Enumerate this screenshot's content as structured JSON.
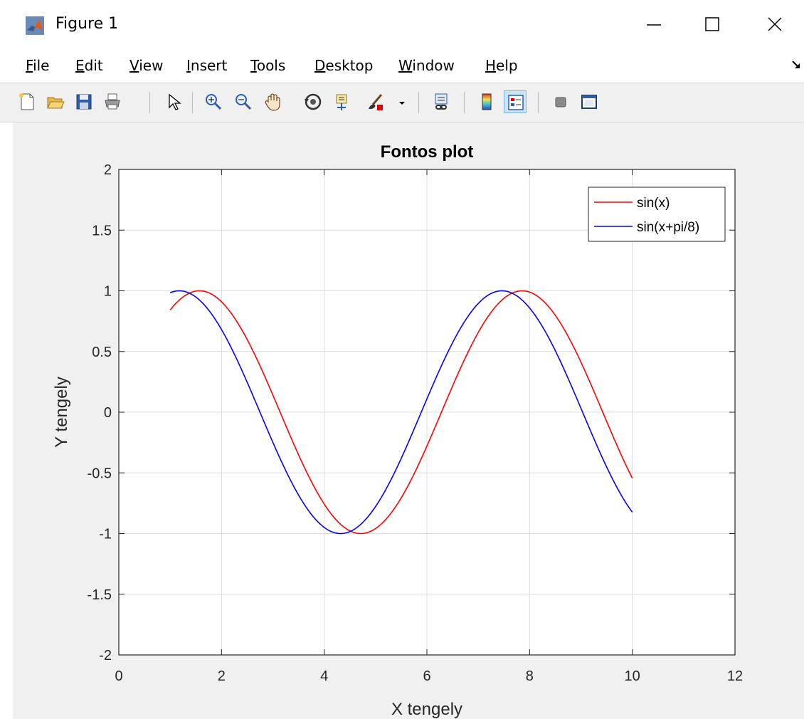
{
  "window": {
    "title": "Figure 1",
    "controls": [
      "minimize",
      "maximize",
      "close"
    ]
  },
  "menu": {
    "items": [
      {
        "label": "File",
        "mnemonic": "F",
        "rest": "ile"
      },
      {
        "label": "Edit",
        "mnemonic": "E",
        "rest": "dit"
      },
      {
        "label": "View",
        "mnemonic": "V",
        "rest": "iew"
      },
      {
        "label": "Insert",
        "mnemonic": "I",
        "rest": "nsert"
      },
      {
        "label": "Tools",
        "mnemonic": "T",
        "rest": "ools"
      },
      {
        "label": "Desktop",
        "mnemonic": "D",
        "rest": "esktop"
      },
      {
        "label": "Window",
        "mnemonic": "W",
        "rest": "indow"
      },
      {
        "label": "Help",
        "mnemonic": "H",
        "rest": "elp"
      }
    ]
  },
  "toolbar": {
    "icons": [
      "new-figure-icon",
      "open-file-icon",
      "save-icon",
      "print-icon",
      "edit-plot-icon",
      "zoom-in-icon",
      "zoom-out-icon",
      "pan-icon",
      "rotate-3d-icon",
      "data-cursor-icon",
      "brush-icon",
      "brush-dropdown-icon",
      "link-plot-icon",
      "insert-colorbar-icon",
      "insert-legend-icon",
      "hide-plot-tools-icon",
      "show-plot-tools-icon"
    ],
    "pressed": "insert-legend-icon"
  },
  "chart_data": {
    "type": "line",
    "title": "Fontos plot",
    "xlabel": "X tengely",
    "ylabel": "Y tengely",
    "xlim": [
      0,
      12
    ],
    "ylim": [
      -2,
      2
    ],
    "xticks": [
      "0",
      "2",
      "4",
      "6",
      "8",
      "10",
      "12"
    ],
    "yticks": [
      "-2",
      "-1.5",
      "-1",
      "-0.5",
      "0",
      "0.5",
      "1",
      "1.5",
      "2"
    ],
    "grid": true,
    "legend": "top-right",
    "x_range": [
      1,
      10
    ],
    "series": [
      {
        "name": "sin(x)",
        "expression": "sin(x)",
        "phase": 0,
        "color": "#ff0000"
      },
      {
        "name": "sin(x+pi/8)",
        "expression": "sin(x+pi/8)",
        "phase": 0.3927,
        "color": "#0000ff"
      }
    ]
  }
}
